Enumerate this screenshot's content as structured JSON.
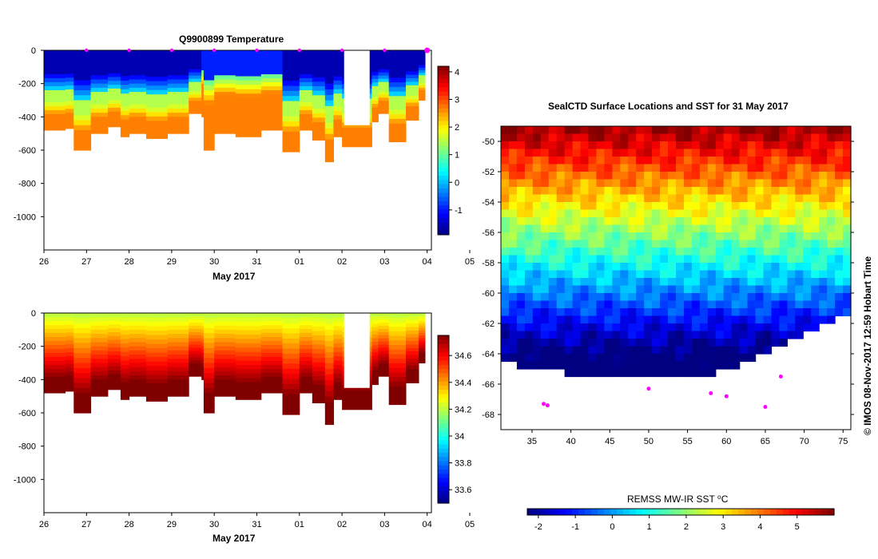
{
  "chart_data": [
    {
      "type": "heatmap",
      "title": "Q9900899  Temperature",
      "xlabel": "May 2017",
      "ylabel": "",
      "x_ticks": [
        "26",
        "27",
        "28",
        "29",
        "30",
        "31",
        "01",
        "02",
        "03",
        "04",
        "05"
      ],
      "y_ticks": [
        0,
        -200,
        -400,
        -600,
        -800,
        -1000
      ],
      "ylim": [
        -1200,
        0
      ],
      "xlim": [
        26,
        35.1
      ],
      "colorbar": {
        "ticks": [
          4,
          3,
          2,
          1,
          0,
          -1
        ],
        "range": [
          -1.9,
          4.2
        ]
      },
      "surface_markers_day": [
        27,
        28,
        29,
        30,
        31,
        32,
        33,
        34,
        35
      ],
      "profiles": [
        {
          "day": 26.0,
          "depth": -480
        },
        {
          "day": 26.5,
          "depth": -470
        },
        {
          "day": 26.7,
          "depth": -600
        },
        {
          "day": 27.1,
          "depth": -500
        },
        {
          "day": 27.5,
          "depth": -460
        },
        {
          "day": 27.8,
          "depth": -520
        },
        {
          "day": 28.0,
          "depth": -500
        },
        {
          "day": 28.4,
          "depth": -530
        },
        {
          "day": 28.9,
          "depth": -500
        },
        {
          "day": 29.4,
          "depth": -380
        },
        {
          "day": 29.7,
          "depth": -400
        },
        {
          "day": 29.75,
          "depth": -600
        },
        {
          "day": 30.0,
          "depth": -500
        },
        {
          "day": 30.5,
          "depth": -520
        },
        {
          "day": 31.1,
          "depth": -480
        },
        {
          "day": 31.6,
          "depth": -610
        },
        {
          "day": 32.0,
          "depth": -480
        },
        {
          "day": 32.3,
          "depth": -540
        },
        {
          "day": 32.6,
          "depth": -670
        },
        {
          "day": 32.8,
          "depth": -520
        },
        {
          "day": 33.0,
          "depth": -580
        },
        {
          "day": 33.7,
          "depth": -430
        },
        {
          "day": 33.85,
          "depth": -380
        },
        {
          "day": 34.1,
          "depth": -550
        },
        {
          "day": 34.5,
          "depth": -420
        },
        {
          "day": 34.8,
          "depth": -300
        }
      ]
    },
    {
      "type": "heatmap",
      "title": "",
      "xlabel": "May 2017",
      "ylabel": "",
      "x_ticks": [
        "26",
        "27",
        "28",
        "29",
        "30",
        "31",
        "01",
        "02",
        "03",
        "04",
        "05"
      ],
      "y_ticks": [
        0,
        -200,
        -400,
        -600,
        -800,
        -1000
      ],
      "ylim": [
        -1200,
        0
      ],
      "xlim": [
        26,
        35.1
      ],
      "colorbar": {
        "ticks": [
          34.6,
          34.4,
          34.2,
          34,
          33.8,
          33.6
        ],
        "range": [
          33.5,
          34.75
        ]
      }
    },
    {
      "type": "heatmap",
      "title": "SealCTD Surface Locations and SST for 31 May 2017",
      "xlabel": "",
      "ylabel": "",
      "x_ticks": [
        35,
        40,
        45,
        50,
        55,
        60,
        65,
        70,
        75
      ],
      "y_ticks": [
        -50,
        -52,
        -54,
        -56,
        -58,
        -60,
        -62,
        -64,
        -66,
        -68
      ],
      "xlim": [
        31,
        76
      ],
      "ylim": [
        -69,
        -49
      ],
      "colorbar": {
        "label": "REMSS MW-IR SST ⁰C",
        "ticks": [
          -2,
          -1,
          0,
          1,
          2,
          3,
          4,
          5
        ],
        "range": [
          -2.3,
          6
        ]
      }
    }
  ],
  "stamp": "© IMOS 08-Nov-2017 12:59 Hobart Time"
}
